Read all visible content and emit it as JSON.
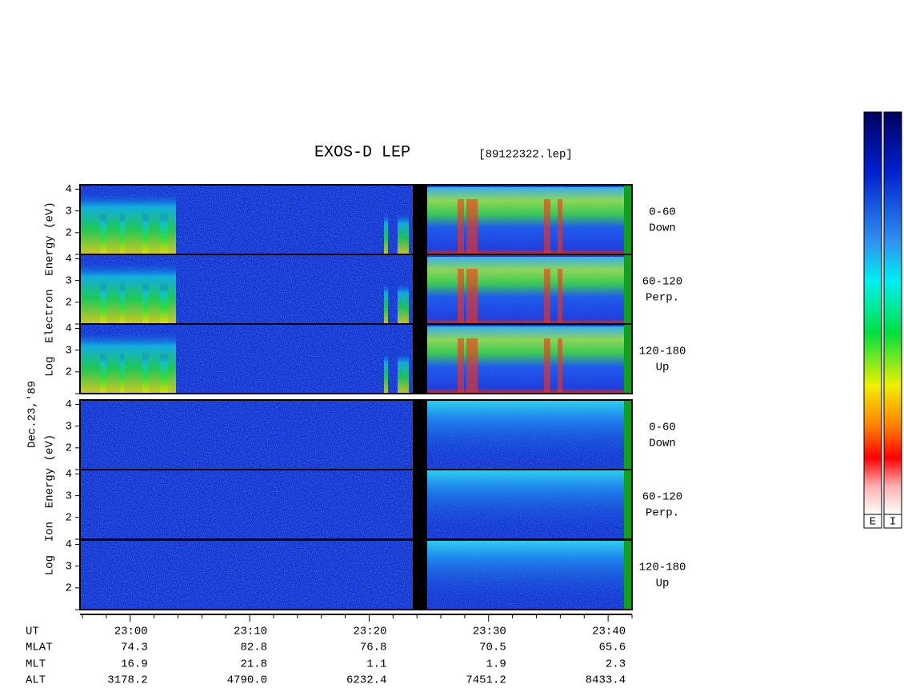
{
  "chart_data": {
    "type": "spectrogram",
    "title": "EXOS-D LEP",
    "subtitle": "[89122322.lep]",
    "date_label": "Dec.23,'89",
    "blocks": [
      {
        "ylabel": "Log  Electron  Energy (eV)",
        "panels": [
          [
            "0-60",
            "Down"
          ],
          [
            "60-120",
            "Perp."
          ],
          [
            "120-180",
            "Up"
          ]
        ]
      },
      {
        "ylabel": "Log  Ion  Energy (eV)",
        "panels": [
          [
            "0-60",
            "Down"
          ],
          [
            "60-120",
            "Perp."
          ],
          [
            "120-180",
            "Up"
          ]
        ]
      }
    ],
    "ylim": [
      1,
      4.2
    ],
    "yticks": [
      2,
      3,
      4
    ],
    "xlim": [
      1375.8,
      1422
    ],
    "xticks": [
      {
        "value": 1380,
        "label": "23:00"
      },
      {
        "value": 1390,
        "label": "23:10"
      },
      {
        "value": 1400,
        "label": "23:20"
      },
      {
        "value": 1410,
        "label": "23:30"
      },
      {
        "value": 1420,
        "label": "23:40"
      }
    ],
    "minor_xticks": [
      1376,
      1378,
      1382,
      1384,
      1386,
      1388,
      1392,
      1394,
      1396,
      1398,
      1402,
      1404,
      1406,
      1408,
      1412,
      1414,
      1416,
      1418,
      1422
    ],
    "colorbar_labels": [
      "E",
      "I"
    ],
    "table": {
      "row_labels": [
        "UT",
        "MLAT",
        "MLT",
        "ALT"
      ],
      "rows": [
        [
          "74.3",
          "82.8",
          "76.8",
          "70.5",
          "65.6"
        ],
        [
          "16.9",
          "21.8",
          "1.1",
          "1.9",
          "2.3"
        ],
        [
          "3178.2",
          "4790.0",
          "6232.4",
          "7451.2",
          "8433.4"
        ]
      ]
    }
  }
}
